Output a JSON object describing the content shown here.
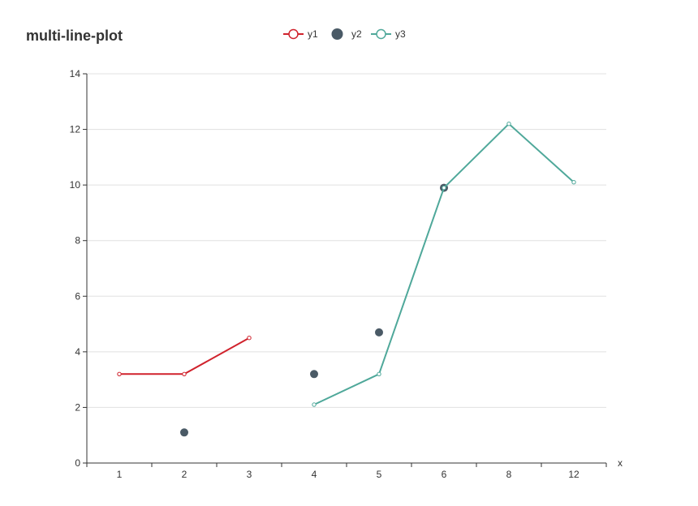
{
  "chart_data": {
    "type": "line",
    "title": "multi-line-plot",
    "xlabel": "x",
    "ylabel": "",
    "categories": [
      "1",
      "2",
      "3",
      "4",
      "5",
      "6",
      "8",
      "12"
    ],
    "ylim": [
      0,
      14
    ],
    "yticks": [
      0,
      2,
      4,
      6,
      8,
      10,
      12,
      14
    ],
    "grid": true,
    "legend_position": "top-center",
    "series": [
      {
        "name": "y1",
        "kind": "line",
        "color": "#d0222c",
        "values": [
          3.2,
          3.2,
          4.5,
          null,
          null,
          null,
          null,
          null
        ]
      },
      {
        "name": "y2",
        "kind": "scatter",
        "color": "#4a5a66",
        "values": [
          null,
          1.1,
          null,
          3.2,
          4.7,
          9.9,
          null,
          null
        ]
      },
      {
        "name": "y3",
        "kind": "line",
        "color": "#4fa89a",
        "values": [
          null,
          null,
          null,
          2.1,
          3.2,
          9.9,
          12.2,
          10.1
        ]
      }
    ]
  }
}
